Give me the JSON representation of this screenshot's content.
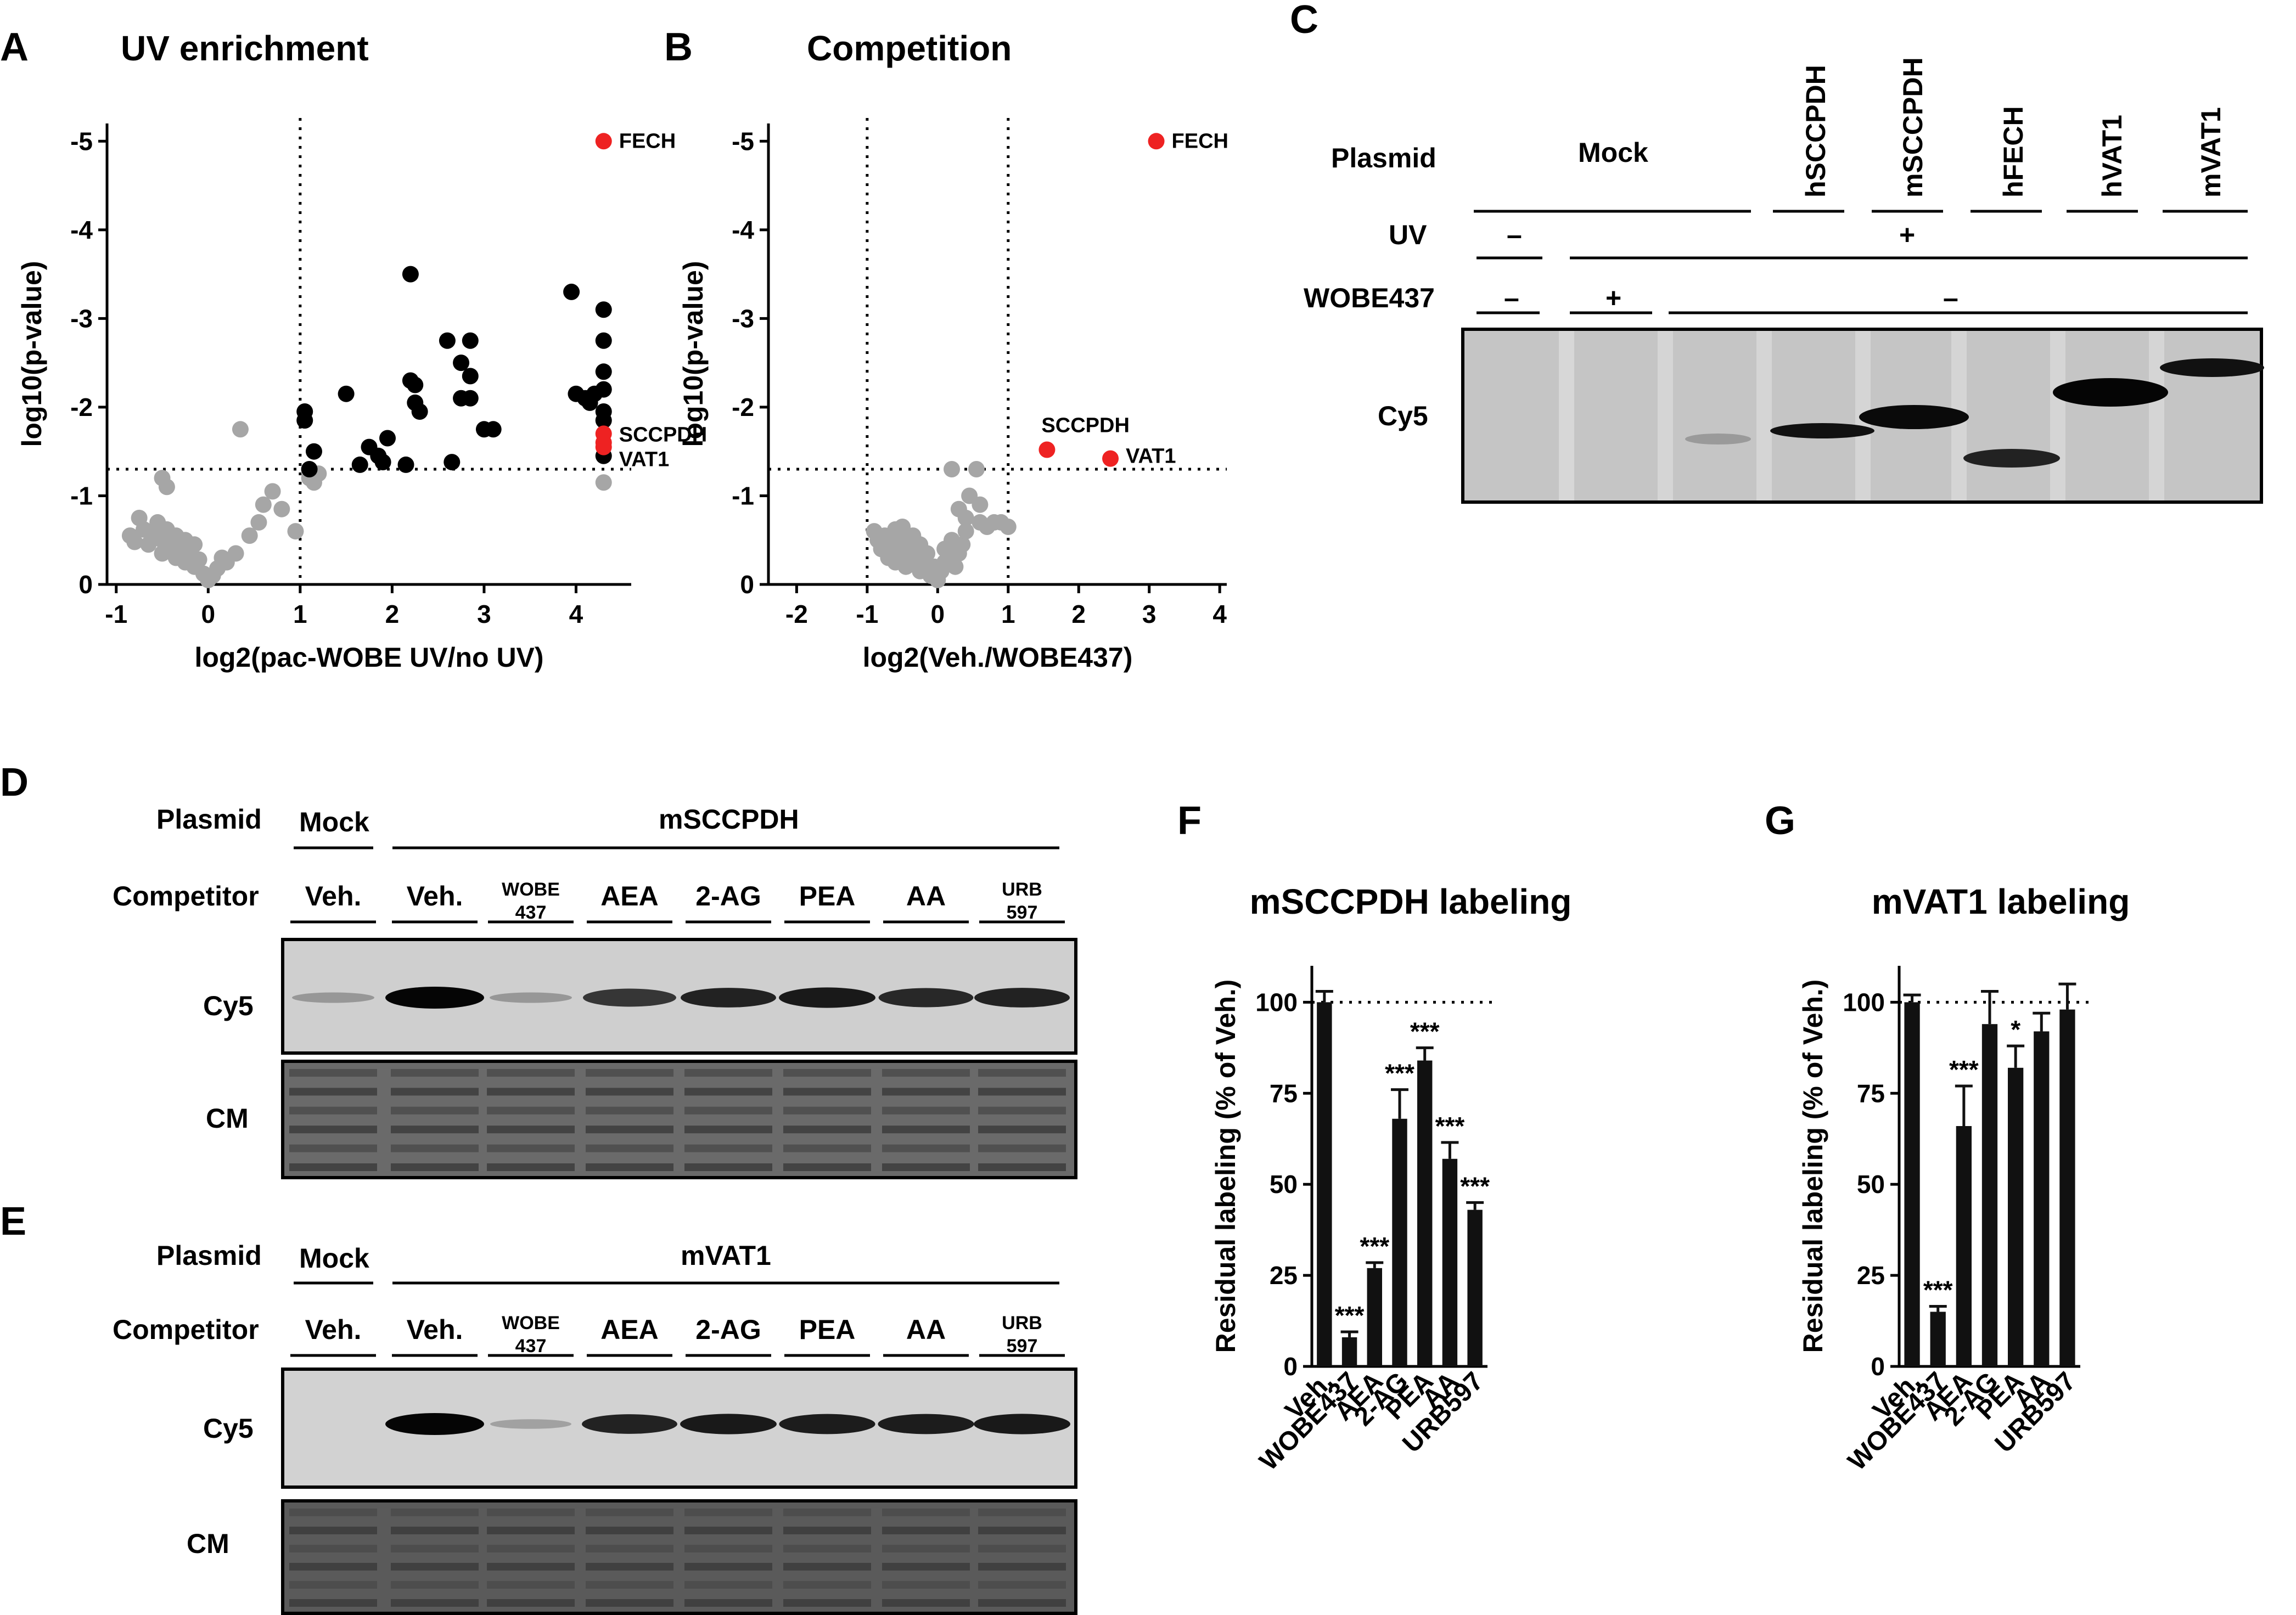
{
  "panels": {
    "A": {
      "letter": "A",
      "title": "UV enrichment"
    },
    "B": {
      "letter": "B",
      "title": "Competition"
    },
    "C": {
      "letter": "C"
    },
    "D": {
      "letter": "D"
    },
    "E": {
      "letter": "E"
    },
    "F": {
      "letter": "F"
    },
    "G": {
      "letter": "G"
    }
  },
  "blot_C": {
    "rows": {
      "plasmid": "Plasmid",
      "uv": "UV",
      "wobe": "WOBE437",
      "band": "Cy5"
    },
    "plasmid_groups": [
      "Mock",
      "hSCCPDH",
      "mSCCPDH",
      "hFECH",
      "hVAT1",
      "mVAT1"
    ],
    "uv_values": [
      "–",
      "+"
    ],
    "wobe_values": [
      "–",
      "+",
      "–"
    ]
  },
  "blot_D": {
    "rows": {
      "plasmid": "Plasmid",
      "competitor": "Competitor",
      "band1": "Cy5",
      "band2": "CM"
    },
    "plasmid_mock": "Mock",
    "plasmid_main": "mSCCPDH",
    "competitors": [
      "Veh.",
      "Veh.",
      "WOBE\n437",
      "AEA",
      "2-AG",
      "PEA",
      "AA",
      "URB\n597"
    ],
    "cy5_intensity": [
      0.25,
      1.0,
      0.25,
      0.75,
      0.85,
      0.9,
      0.82,
      0.85
    ]
  },
  "blot_E": {
    "rows": {
      "plasmid": "Plasmid",
      "competitor": "Competitor",
      "band1": "Cy5",
      "band2": "CM"
    },
    "plasmid_mock": "Mock",
    "plasmid_main": "mVAT1",
    "competitors": [
      "Veh.",
      "Veh.",
      "WOBE\n437",
      "AEA",
      "2-AG",
      "PEA",
      "AA",
      "URB\n597"
    ],
    "cy5_intensity": [
      0.0,
      1.0,
      0.2,
      0.85,
      0.9,
      0.88,
      0.88,
      0.9
    ]
  },
  "chart_data": [
    {
      "id": "A",
      "type": "scatter",
      "title": "UV enrichment",
      "xlabel": "log2(pac-WOBE UV/no UV)",
      "ylabel": "log10(p-value)",
      "xlim": [
        -1.1,
        4.6
      ],
      "ylim": [
        0,
        -5.2
      ],
      "xticks": [
        -1,
        0,
        1,
        2,
        3,
        4
      ],
      "yticks": [
        0,
        -1,
        -2,
        -3,
        -4,
        -5
      ],
      "thresholds": {
        "x": 1,
        "y": -1.3
      },
      "series": [
        {
          "color": "#a6a6a6",
          "points": [
            [
              -0.85,
              -0.55
            ],
            [
              -0.8,
              -0.48
            ],
            [
              -0.75,
              -0.75
            ],
            [
              -0.7,
              -0.62
            ],
            [
              -0.65,
              -0.45
            ],
            [
              -0.6,
              -0.58
            ],
            [
              -0.55,
              -0.7
            ],
            [
              -0.5,
              -0.5
            ],
            [
              -0.5,
              -0.35
            ],
            [
              -0.45,
              -0.62
            ],
            [
              -0.4,
              -0.45
            ],
            [
              -0.35,
              -0.3
            ],
            [
              -0.35,
              -0.55
            ],
            [
              -0.3,
              -0.4
            ],
            [
              -0.25,
              -0.25
            ],
            [
              -0.25,
              -0.5
            ],
            [
              -0.2,
              -0.35
            ],
            [
              -0.15,
              -0.2
            ],
            [
              -0.15,
              -0.45
            ],
            [
              -0.1,
              -0.28
            ],
            [
              -0.05,
              -0.12
            ],
            [
              0,
              -0.05
            ],
            [
              0.05,
              -0.1
            ],
            [
              0.1,
              -0.18
            ],
            [
              0.15,
              -0.3
            ],
            [
              0.2,
              -0.25
            ],
            [
              0.3,
              -0.35
            ],
            [
              0.35,
              -1.75
            ],
            [
              0.45,
              -0.55
            ],
            [
              0.55,
              -0.7
            ],
            [
              0.6,
              -0.9
            ],
            [
              0.7,
              -1.05
            ],
            [
              0.8,
              -0.85
            ],
            [
              0.95,
              -0.6
            ],
            [
              -0.5,
              -1.2
            ],
            [
              -0.45,
              -1.1
            ],
            [
              1.1,
              -1.2
            ],
            [
              1.2,
              -1.25
            ],
            [
              1.15,
              -1.15
            ],
            [
              4.3,
              -1.15
            ]
          ]
        },
        {
          "color": "#000000",
          "points": [
            [
              1.05,
              -1.85
            ],
            [
              1.05,
              -1.95
            ],
            [
              1.1,
              -1.3
            ],
            [
              1.15,
              -1.5
            ],
            [
              1.5,
              -2.15
            ],
            [
              1.65,
              -1.35
            ],
            [
              1.75,
              -1.55
            ],
            [
              1.85,
              -1.45
            ],
            [
              1.9,
              -1.38
            ],
            [
              1.95,
              -1.65
            ],
            [
              2.15,
              -1.35
            ],
            [
              2.2,
              -3.5
            ],
            [
              2.2,
              -2.3
            ],
            [
              2.25,
              -2.25
            ],
            [
              2.25,
              -2.05
            ],
            [
              2.3,
              -1.95
            ],
            [
              2.6,
              -2.75
            ],
            [
              2.65,
              -1.38
            ],
            [
              2.75,
              -2.5
            ],
            [
              2.75,
              -2.1
            ],
            [
              2.85,
              -2.1
            ],
            [
              2.85,
              -2.35
            ],
            [
              2.85,
              -2.75
            ],
            [
              3.0,
              -1.75
            ],
            [
              3.1,
              -1.75
            ],
            [
              3.95,
              -3.3
            ],
            [
              4.0,
              -2.15
            ],
            [
              4.1,
              -2.1
            ],
            [
              4.15,
              -2.05
            ],
            [
              4.3,
              -3.1
            ],
            [
              4.3,
              -2.75
            ],
            [
              4.3,
              -2.4
            ],
            [
              4.3,
              -2.2
            ],
            [
              4.3,
              -1.95
            ],
            [
              4.3,
              -1.85
            ],
            [
              4.3,
              -1.45
            ],
            [
              4.2,
              -2.15
            ]
          ]
        },
        {
          "color": "#ee2222",
          "points": [
            [
              4.3,
              -5.0
            ],
            [
              4.3,
              -1.7
            ],
            [
              4.3,
              -1.6
            ],
            [
              4.3,
              -1.55
            ]
          ]
        }
      ],
      "labels": [
        {
          "text": "FECH",
          "x": 4.3,
          "y": -5.0
        },
        {
          "text": "SCCPDH",
          "x": 4.3,
          "y": -1.75
        },
        {
          "text": "VAT1",
          "x": 4.3,
          "y": -1.52
        }
      ]
    },
    {
      "id": "B",
      "type": "scatter",
      "title": "Competition",
      "xlabel": "log2(Veh./WOBE437)",
      "ylabel": "log10(p-value)",
      "xlim": [
        -2.4,
        4.1
      ],
      "ylim": [
        0,
        -5.2
      ],
      "xticks": [
        -2,
        -1,
        0,
        1,
        2,
        3,
        4
      ],
      "yticks": [
        0,
        -1,
        -2,
        -3,
        -4,
        -5
      ],
      "thresholds": {
        "x": [
          -1,
          1
        ],
        "y": -1.3
      },
      "series": [
        {
          "color": "#a6a6a6",
          "points": [
            [
              -0.9,
              -0.6
            ],
            [
              -0.85,
              -0.5
            ],
            [
              -0.8,
              -0.4
            ],
            [
              -0.75,
              -0.55
            ],
            [
              -0.7,
              -0.3
            ],
            [
              -0.65,
              -0.45
            ],
            [
              -0.6,
              -0.25
            ],
            [
              -0.55,
              -0.5
            ],
            [
              -0.5,
              -0.65
            ],
            [
              -0.5,
              -0.35
            ],
            [
              -0.45,
              -0.2
            ],
            [
              -0.4,
              -0.4
            ],
            [
              -0.35,
              -0.55
            ],
            [
              -0.3,
              -0.3
            ],
            [
              -0.25,
              -0.15
            ],
            [
              -0.25,
              -0.45
            ],
            [
              -0.2,
              -0.25
            ],
            [
              -0.15,
              -0.35
            ],
            [
              -0.1,
              -0.1
            ],
            [
              -0.05,
              -0.2
            ],
            [
              0,
              -0.05
            ],
            [
              0.05,
              -0.15
            ],
            [
              0.1,
              -0.25
            ],
            [
              0.1,
              -0.4
            ],
            [
              0.15,
              -0.3
            ],
            [
              0.2,
              -0.5
            ],
            [
              0.25,
              -0.2
            ],
            [
              0.3,
              -0.35
            ],
            [
              0.35,
              -0.45
            ],
            [
              0.4,
              -0.6
            ],
            [
              0.3,
              -0.85
            ],
            [
              0.4,
              -0.75
            ],
            [
              0.45,
              -1.0
            ],
            [
              0.6,
              -0.7
            ],
            [
              0.6,
              -0.9
            ],
            [
              0.7,
              -0.65
            ],
            [
              0.8,
              -0.7
            ],
            [
              0.9,
              -0.7
            ],
            [
              1.0,
              -0.65
            ],
            [
              0.2,
              -1.3
            ],
            [
              0.55,
              -1.3
            ],
            [
              -0.7,
              -0.5
            ],
            [
              -0.6,
              -0.62
            ]
          ]
        },
        {
          "color": "#ee2222",
          "points": [
            [
              3.1,
              -5.0
            ],
            [
              1.55,
              -1.52
            ],
            [
              2.45,
              -1.42
            ]
          ]
        }
      ],
      "labels": [
        {
          "text": "FECH",
          "x": 3.1,
          "y": -5.0
        },
        {
          "text": "SCCPDH",
          "x": 1.55,
          "y": -1.52
        },
        {
          "text": "VAT1",
          "x": 2.45,
          "y": -1.42
        }
      ]
    },
    {
      "id": "F",
      "type": "bar",
      "title": "mSCCPDH labeling",
      "ylabel": "Residual labeling (% of Veh.)",
      "categories": [
        "Veh.",
        "WOBE437",
        "AEA",
        "2-AG",
        "PEA",
        "AA",
        "URB597"
      ],
      "values": [
        100,
        8,
        27,
        68,
        84,
        57,
        43
      ],
      "errors": [
        3,
        1.5,
        1.5,
        8,
        3.5,
        4.5,
        2
      ],
      "significance": [
        "",
        "***",
        "***",
        "***",
        "***",
        "***",
        "***"
      ],
      "ylim": [
        0,
        110
      ],
      "yticks": [
        0,
        25,
        50,
        75,
        100
      ],
      "reference_line": 100
    },
    {
      "id": "G",
      "type": "bar",
      "title": "mVAT1 labeling",
      "ylabel": "Residual labeling (% of Veh.)",
      "categories": [
        "Veh.",
        "WOBE437",
        "AEA",
        "2-AG",
        "PEA",
        "AA",
        "URB597"
      ],
      "values": [
        100,
        15,
        66,
        94,
        82,
        92,
        98
      ],
      "errors": [
        2,
        1.5,
        11,
        9,
        6,
        5,
        7
      ],
      "significance": [
        "",
        "***",
        "***",
        "",
        "*",
        "",
        ""
      ],
      "ylim": [
        0,
        110
      ],
      "yticks": [
        0,
        25,
        50,
        75,
        100
      ],
      "reference_line": 100
    }
  ]
}
